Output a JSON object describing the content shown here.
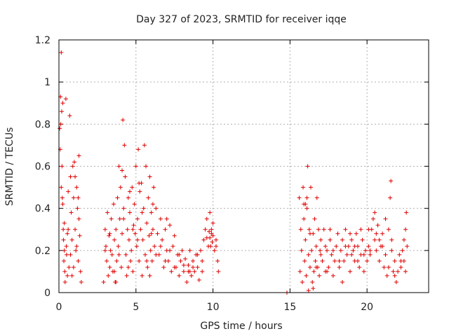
{
  "chart_data": {
    "type": "scatter",
    "title": "Day 327 of 2023, SRMTID for receiver iqqe",
    "xlabel": "GPS time / hours",
    "ylabel": "SRMTID / TECUs",
    "xlim": [
      0,
      24
    ],
    "ylim": [
      0,
      1.2
    ],
    "xticks": [
      0,
      5,
      10,
      15,
      20
    ],
    "xtick_labels": [
      "0",
      "5",
      "10",
      "15",
      "20"
    ],
    "yticks": [
      0,
      0.2,
      0.4,
      0.6,
      0.8,
      1.0,
      1.2
    ],
    "ytick_labels": [
      "0",
      "0.2",
      "0.4",
      "0.6",
      "0.8",
      "1",
      "1.2"
    ],
    "grid": true,
    "marker": "+",
    "color": "#e00000",
    "series": [
      {
        "name": "SRMTID",
        "points": [
          [
            0.05,
            0.78
          ],
          [
            0.08,
            0.68
          ],
          [
            0.1,
            0.93
          ],
          [
            0.12,
            0.8
          ],
          [
            0.15,
            1.14
          ],
          [
            0.18,
            0.86
          ],
          [
            0.2,
            0.6
          ],
          [
            0.22,
            0.45
          ],
          [
            0.25,
            0.9
          ],
          [
            0.28,
            0.3
          ],
          [
            0.3,
            0.25
          ],
          [
            0.32,
            0.15
          ],
          [
            0.35,
            0.2
          ],
          [
            0.38,
            0.1
          ],
          [
            0.4,
            0.05
          ],
          [
            0.45,
            0.92
          ],
          [
            0.48,
            0.22
          ],
          [
            0.5,
            0.18
          ],
          [
            0.55,
            0.08
          ],
          [
            0.6,
            0.3
          ],
          [
            0.65,
            0.12
          ],
          [
            0.7,
            0.84
          ],
          [
            0.75,
            0.55
          ],
          [
            0.8,
            0.38
          ],
          [
            0.85,
            0.25
          ],
          [
            0.9,
            0.6
          ],
          [
            0.95,
            0.45
          ],
          [
            1.0,
            0.62
          ],
          [
            1.05,
            0.3
          ],
          [
            1.1,
            0.2
          ],
          [
            1.15,
            0.5
          ],
          [
            1.2,
            0.4
          ],
          [
            1.25,
            0.15
          ],
          [
            1.3,
            0.65
          ],
          [
            1.35,
            0.27
          ],
          [
            1.4,
            0.1
          ],
          [
            1.45,
            0.05
          ],
          [
            0.15,
            0.5
          ],
          [
            0.25,
            0.42
          ],
          [
            0.35,
            0.33
          ],
          [
            0.55,
            0.28
          ],
          [
            0.75,
            0.18
          ],
          [
            0.95,
            0.12
          ],
          [
            1.15,
            0.22
          ],
          [
            1.3,
            0.35
          ],
          [
            0.6,
            0.48
          ],
          [
            0.85,
            0.08
          ],
          [
            1.05,
            0.55
          ],
          [
            1.25,
            0.45
          ],
          [
            2.9,
            0.05
          ],
          [
            3.0,
            0.3
          ],
          [
            3.05,
            0.22
          ],
          [
            3.1,
            0.15
          ],
          [
            3.15,
            0.38
          ],
          [
            3.2,
            0.08
          ],
          [
            3.25,
            0.27
          ],
          [
            3.3,
            0.12
          ],
          [
            3.35,
            0.2
          ],
          [
            3.4,
            0.35
          ],
          [
            3.45,
            0.18
          ],
          [
            3.5,
            0.1
          ],
          [
            3.55,
            0.42
          ],
          [
            3.6,
            0.25
          ],
          [
            3.65,
            0.05
          ],
          [
            3.7,
            0.3
          ],
          [
            3.75,
            0.15
          ],
          [
            3.8,
            0.45
          ],
          [
            3.85,
            0.22
          ],
          [
            3.9,
            0.6
          ],
          [
            3.95,
            0.35
          ],
          [
            4.0,
            0.5
          ],
          [
            4.05,
            0.12
          ],
          [
            4.1,
            0.28
          ],
          [
            4.15,
            0.82
          ],
          [
            4.2,
            0.4
          ],
          [
            4.25,
            0.7
          ],
          [
            4.3,
            0.55
          ],
          [
            4.35,
            0.18
          ],
          [
            4.4,
            0.08
          ],
          [
            4.45,
            0.3
          ],
          [
            4.5,
            0.45
          ],
          [
            4.55,
            0.25
          ],
          [
            4.6,
            0.38
          ],
          [
            4.65,
            0.15
          ],
          [
            4.7,
            0.2
          ],
          [
            4.75,
            0.5
          ],
          [
            4.8,
            0.1
          ],
          [
            4.85,
            0.32
          ],
          [
            4.9,
            0.42
          ],
          [
            4.95,
            0.28
          ],
          [
            5.0,
            0.6
          ],
          [
            5.05,
            0.22
          ],
          [
            5.1,
            0.35
          ],
          [
            5.15,
            0.68
          ],
          [
            5.2,
            0.15
          ],
          [
            5.25,
            0.48
          ],
          [
            5.3,
            0.3
          ],
          [
            5.35,
            0.52
          ],
          [
            5.4,
            0.08
          ],
          [
            5.45,
            0.25
          ],
          [
            5.5,
            0.4
          ],
          [
            5.55,
            0.7
          ],
          [
            5.6,
            0.18
          ],
          [
            5.65,
            0.6
          ],
          [
            5.7,
            0.33
          ],
          [
            5.75,
            0.12
          ],
          [
            5.8,
            0.45
          ],
          [
            5.85,
            0.27
          ],
          [
            5.9,
            0.55
          ],
          [
            5.95,
            0.2
          ],
          [
            6.0,
            0.38
          ],
          [
            6.05,
            0.15
          ],
          [
            6.1,
            0.3
          ],
          [
            6.15,
            0.5
          ],
          [
            6.2,
            0.22
          ],
          [
            6.3,
            0.4
          ],
          [
            6.4,
            0.28
          ],
          [
            6.5,
            0.18
          ],
          [
            6.6,
            0.35
          ],
          [
            6.7,
            0.25
          ],
          [
            6.8,
            0.12
          ],
          [
            6.9,
            0.3
          ],
          [
            7.0,
            0.2
          ],
          [
            7.1,
            0.15
          ],
          [
            7.2,
            0.32
          ],
          [
            7.3,
            0.1
          ],
          [
            7.4,
            0.22
          ],
          [
            7.5,
            0.27
          ],
          [
            7.6,
            0.12
          ],
          [
            7.7,
            0.18
          ],
          [
            7.8,
            0.08
          ],
          [
            7.9,
            0.15
          ],
          [
            8.0,
            0.2
          ],
          [
            8.1,
            0.1
          ],
          [
            8.2,
            0.16
          ],
          [
            8.3,
            0.05
          ],
          [
            8.4,
            0.13
          ],
          [
            8.5,
            0.2
          ],
          [
            8.6,
            0.08
          ],
          [
            8.7,
            0.15
          ],
          [
            8.8,
            0.1
          ],
          [
            8.9,
            0.18
          ],
          [
            9.0,
            0.12
          ],
          [
            9.1,
            0.06
          ],
          [
            9.2,
            0.2
          ],
          [
            9.3,
            0.15
          ],
          [
            9.4,
            0.25
          ],
          [
            9.5,
            0.3
          ],
          [
            9.6,
            0.35
          ],
          [
            9.7,
            0.22
          ],
          [
            9.8,
            0.38
          ],
          [
            9.9,
            0.28
          ],
          [
            10.0,
            0.33
          ],
          [
            10.1,
            0.2
          ],
          [
            10.2,
            0.25
          ],
          [
            10.3,
            0.15
          ],
          [
            10.35,
            0.1
          ],
          [
            3.0,
            0.2
          ],
          [
            3.3,
            0.28
          ],
          [
            3.6,
            0.1
          ],
          [
            3.9,
            0.18
          ],
          [
            4.2,
            0.35
          ],
          [
            4.5,
            0.12
          ],
          [
            4.8,
            0.3
          ],
          [
            5.1,
            0.25
          ],
          [
            5.4,
            0.38
          ],
          [
            5.7,
            0.15
          ],
          [
            6.0,
            0.28
          ],
          [
            6.3,
            0.18
          ],
          [
            6.6,
            0.22
          ],
          [
            6.9,
            0.15
          ],
          [
            7.2,
            0.2
          ],
          [
            7.5,
            0.12
          ],
          [
            7.8,
            0.18
          ],
          [
            8.1,
            0.13
          ],
          [
            8.4,
            0.1
          ],
          [
            8.7,
            0.12
          ],
          [
            9.0,
            0.18
          ],
          [
            9.3,
            0.1
          ],
          [
            9.6,
            0.26
          ],
          [
            9.9,
            0.3
          ],
          [
            10.2,
            0.22
          ],
          [
            4.1,
            0.58
          ],
          [
            5.2,
            0.52
          ],
          [
            6.1,
            0.42
          ],
          [
            4.6,
            0.48
          ],
          [
            3.7,
            0.05
          ],
          [
            5.9,
            0.08
          ],
          [
            7.0,
            0.35
          ],
          [
            8.5,
            0.1
          ],
          [
            9.8,
            0.26
          ],
          [
            10.0,
            0.27
          ],
          [
            9.95,
            0.24
          ],
          [
            9.85,
            0.22
          ],
          [
            9.75,
            0.29
          ],
          [
            14.8,
            0.0
          ],
          [
            15.6,
            0.45
          ],
          [
            15.65,
            0.1
          ],
          [
            15.7,
            0.3
          ],
          [
            15.75,
            0.2
          ],
          [
            15.8,
            0.05
          ],
          [
            15.85,
            0.5
          ],
          [
            15.9,
            0.35
          ],
          [
            15.95,
            0.15
          ],
          [
            16.0,
            0.25
          ],
          [
            16.05,
            0.08
          ],
          [
            16.1,
            0.4
          ],
          [
            16.15,
            0.6
          ],
          [
            16.2,
            0.18
          ],
          [
            16.25,
            0.3
          ],
          [
            16.3,
            0.12
          ],
          [
            16.35,
            0.5
          ],
          [
            16.4,
            0.2
          ],
          [
            16.45,
            0.05
          ],
          [
            16.5,
            0.28
          ],
          [
            16.55,
            0.1
          ],
          [
            16.6,
            0.35
          ],
          [
            16.65,
            0.15
          ],
          [
            16.7,
            0.22
          ],
          [
            16.75,
            0.45
          ],
          [
            16.8,
            0.12
          ],
          [
            16.85,
            0.3
          ],
          [
            16.9,
            0.08
          ],
          [
            16.95,
            0.2
          ],
          [
            17.0,
            0.25
          ],
          [
            17.1,
            0.15
          ],
          [
            17.2,
            0.3
          ],
          [
            17.3,
            0.1
          ],
          [
            17.4,
            0.2
          ],
          [
            17.5,
            0.12
          ],
          [
            17.6,
            0.25
          ],
          [
            17.7,
            0.18
          ],
          [
            17.8,
            0.08
          ],
          [
            17.9,
            0.15
          ],
          [
            18.0,
            0.22
          ],
          [
            18.1,
            0.28
          ],
          [
            18.2,
            0.12
          ],
          [
            18.3,
            0.2
          ],
          [
            18.4,
            0.25
          ],
          [
            18.5,
            0.15
          ],
          [
            18.6,
            0.3
          ],
          [
            18.7,
            0.18
          ],
          [
            18.8,
            0.22
          ],
          [
            18.9,
            0.1
          ],
          [
            19.0,
            0.25
          ],
          [
            19.1,
            0.2
          ],
          [
            19.2,
            0.15
          ],
          [
            19.3,
            0.28
          ],
          [
            19.4,
            0.22
          ],
          [
            19.5,
            0.12
          ],
          [
            19.6,
            0.18
          ],
          [
            19.7,
            0.25
          ],
          [
            19.8,
            0.1
          ],
          [
            19.9,
            0.2
          ],
          [
            20.0,
            0.15
          ],
          [
            20.1,
            0.22
          ],
          [
            20.2,
            0.18
          ],
          [
            20.3,
            0.3
          ],
          [
            20.4,
            0.35
          ],
          [
            20.5,
            0.25
          ],
          [
            20.6,
            0.2
          ],
          [
            20.7,
            0.32
          ],
          [
            20.8,
            0.15
          ],
          [
            20.9,
            0.22
          ],
          [
            21.0,
            0.28
          ],
          [
            21.1,
            0.12
          ],
          [
            21.2,
            0.18
          ],
          [
            21.3,
            0.08
          ],
          [
            21.4,
            0.3
          ],
          [
            21.5,
            0.45
          ],
          [
            21.55,
            0.53
          ],
          [
            21.6,
            0.2
          ],
          [
            21.7,
            0.1
          ],
          [
            21.8,
            0.15
          ],
          [
            21.9,
            0.05
          ],
          [
            22.0,
            0.1
          ],
          [
            22.1,
            0.18
          ],
          [
            22.2,
            0.12
          ],
          [
            22.3,
            0.2
          ],
          [
            22.4,
            0.15
          ],
          [
            22.5,
            0.3
          ],
          [
            22.55,
            0.38
          ],
          [
            22.6,
            0.22
          ],
          [
            16.0,
            0.42
          ],
          [
            16.3,
            0.28
          ],
          [
            16.7,
            0.12
          ],
          [
            17.0,
            0.18
          ],
          [
            17.4,
            0.1
          ],
          [
            17.8,
            0.2
          ],
          [
            18.2,
            0.15
          ],
          [
            18.6,
            0.22
          ],
          [
            19.0,
            0.18
          ],
          [
            19.4,
            0.15
          ],
          [
            19.8,
            0.18
          ],
          [
            20.2,
            0.2
          ],
          [
            20.6,
            0.28
          ],
          [
            21.0,
            0.22
          ],
          [
            21.4,
            0.12
          ],
          [
            21.8,
            0.08
          ],
          [
            22.2,
            0.15
          ],
          [
            22.4,
            0.25
          ],
          [
            15.9,
            0.42
          ],
          [
            16.1,
            0.45
          ],
          [
            16.5,
            0.02
          ],
          [
            17.6,
            0.3
          ],
          [
            18.4,
            0.05
          ],
          [
            19.6,
            0.3
          ],
          [
            20.8,
            0.25
          ],
          [
            21.2,
            0.35
          ],
          [
            20.5,
            0.38
          ],
          [
            16.2,
            0.01
          ],
          [
            17.3,
            0.22
          ],
          [
            18.9,
            0.28
          ],
          [
            19.2,
            0.22
          ],
          [
            20.1,
            0.3
          ],
          [
            21.6,
            0.25
          ],
          [
            22.5,
            0.1
          ]
        ]
      }
    ]
  }
}
